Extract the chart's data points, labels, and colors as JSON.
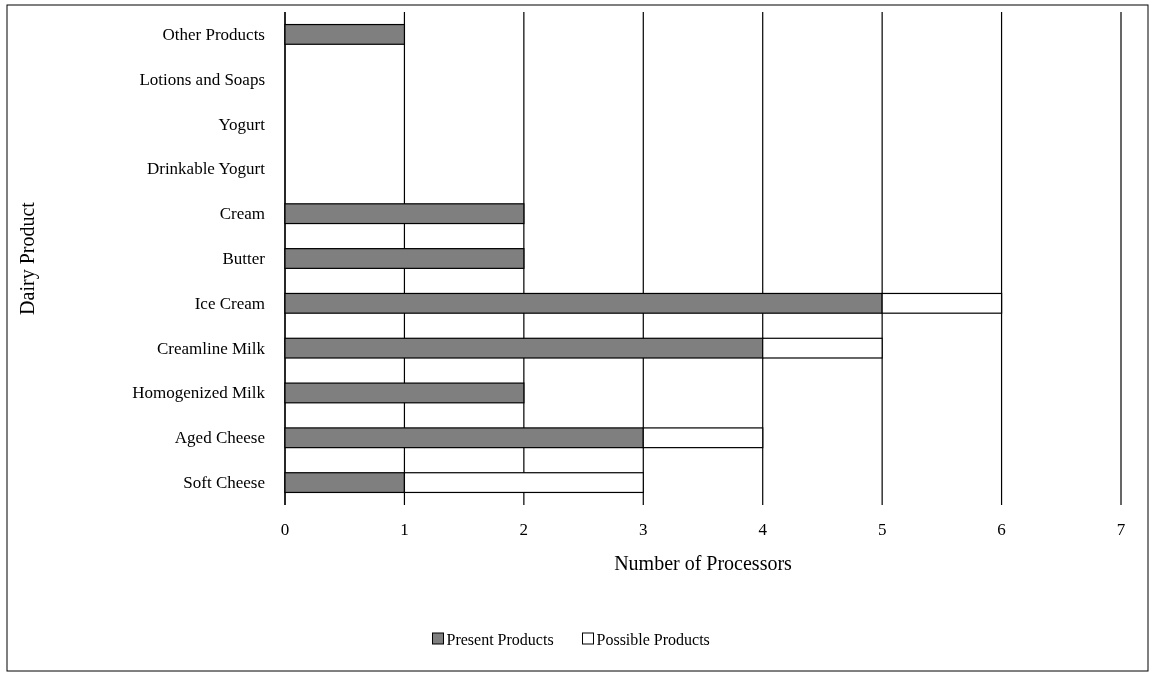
{
  "chart_data": {
    "type": "bar",
    "orientation": "horizontal",
    "stacked": true,
    "xlabel": "Number of Processors",
    "ylabel": "Dairy Product",
    "categories": [
      "Other Products",
      "Lotions and Soaps",
      "Yogurt",
      "Drinkable Yogurt",
      "Cream",
      "Butter",
      "Ice Cream",
      "Creamline Milk",
      "Homogenized Milk",
      "Aged Cheese",
      "Soft Cheese"
    ],
    "series": [
      {
        "name": "Present Products",
        "color": "#7f7f7f",
        "values": [
          1,
          0,
          0,
          0,
          2,
          2,
          5,
          4,
          2,
          3,
          1
        ]
      },
      {
        "name": "Possible Products",
        "color": "#ffffff",
        "values": [
          0,
          0,
          0,
          0,
          0,
          0,
          1,
          1,
          0,
          1,
          2
        ]
      }
    ],
    "xlim": [
      0,
      7
    ],
    "xticks": [
      0,
      1,
      2,
      3,
      4,
      5,
      6,
      7
    ],
    "grid": "x",
    "legend": "bottom"
  }
}
